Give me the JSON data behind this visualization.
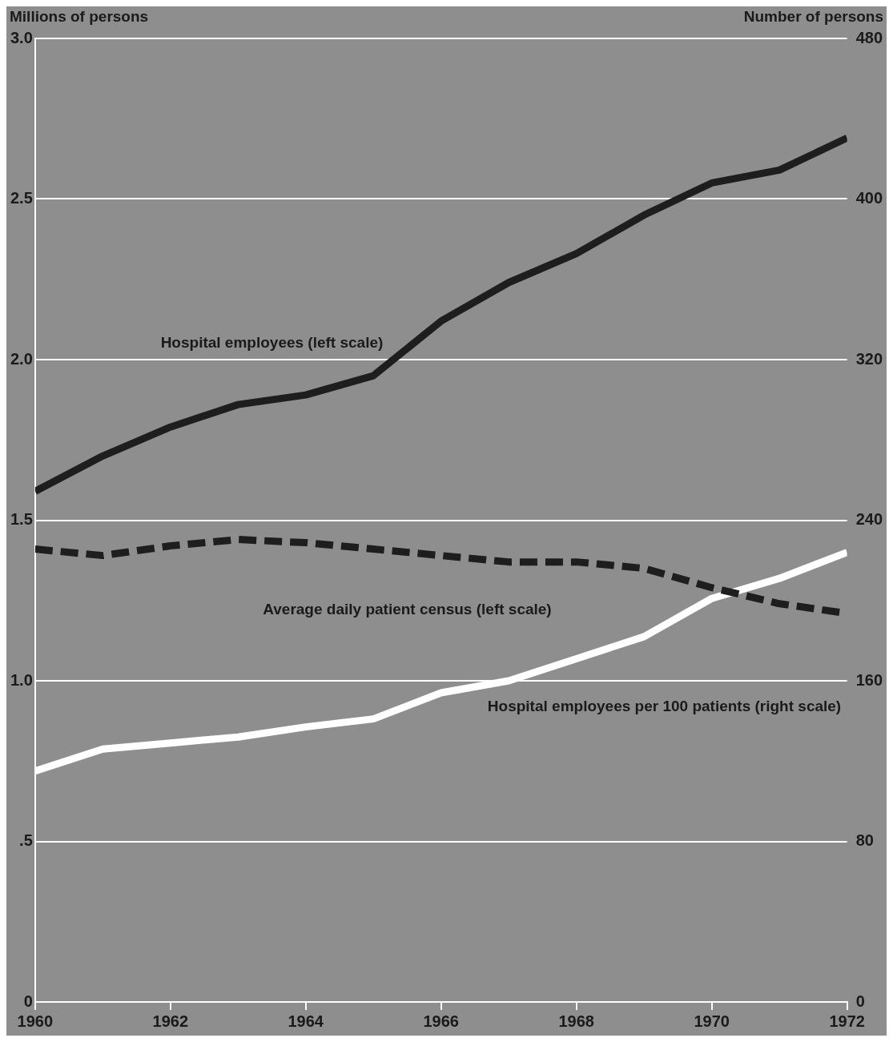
{
  "chart_data": {
    "type": "line",
    "ylabel": "Millions of persons",
    "y2label": "Number of persons",
    "x": [
      1960,
      1961,
      1962,
      1963,
      1964,
      1965,
      1966,
      1967,
      1968,
      1969,
      1970,
      1971,
      1972
    ],
    "xlim": [
      1960,
      1972
    ],
    "xticks": [
      1960,
      1962,
      1964,
      1966,
      1968,
      1970,
      1972
    ],
    "ylim": [
      0,
      3
    ],
    "yticks": [
      {
        "value": 0,
        "label": "0"
      },
      {
        "value": 0.5,
        "label": ".5"
      },
      {
        "value": 1,
        "label": "1.0"
      },
      {
        "value": 1.5,
        "label": "1.5"
      },
      {
        "value": 2,
        "label": "2.0"
      },
      {
        "value": 2.5,
        "label": "2.5"
      },
      {
        "value": 3,
        "label": "3.0"
      }
    ],
    "y2lim": [
      0,
      480
    ],
    "y2ticks": [
      0,
      80,
      160,
      240,
      320,
      400,
      480
    ],
    "grid": "y",
    "legend": false,
    "marker": "none",
    "series": [
      {
        "name": "Hospital employees (left scale)",
        "color": "#1e1e1e",
        "line_style": "solid",
        "values": [
          1.59,
          1.7,
          1.79,
          1.86,
          1.89,
          1.95,
          2.12,
          2.24,
          2.33,
          2.45,
          2.55,
          2.59,
          2.69
        ]
      },
      {
        "name": "Average daily patient census (left scale)",
        "color": "#1e1e1e",
        "line_style": "dashed",
        "values": [
          1.41,
          1.39,
          1.42,
          1.44,
          1.43,
          1.41,
          1.39,
          1.37,
          1.37,
          1.35,
          1.29,
          1.24,
          1.21
        ]
      },
      {
        "name": "Hospital employees per 100 patients (right scale)",
        "color": "#ffffff",
        "line_style": "solid",
        "axis": "y2",
        "values": [
          115,
          126,
          129,
          132,
          137,
          141,
          154,
          160,
          171,
          182,
          201,
          211,
          224
        ]
      }
    ]
  }
}
